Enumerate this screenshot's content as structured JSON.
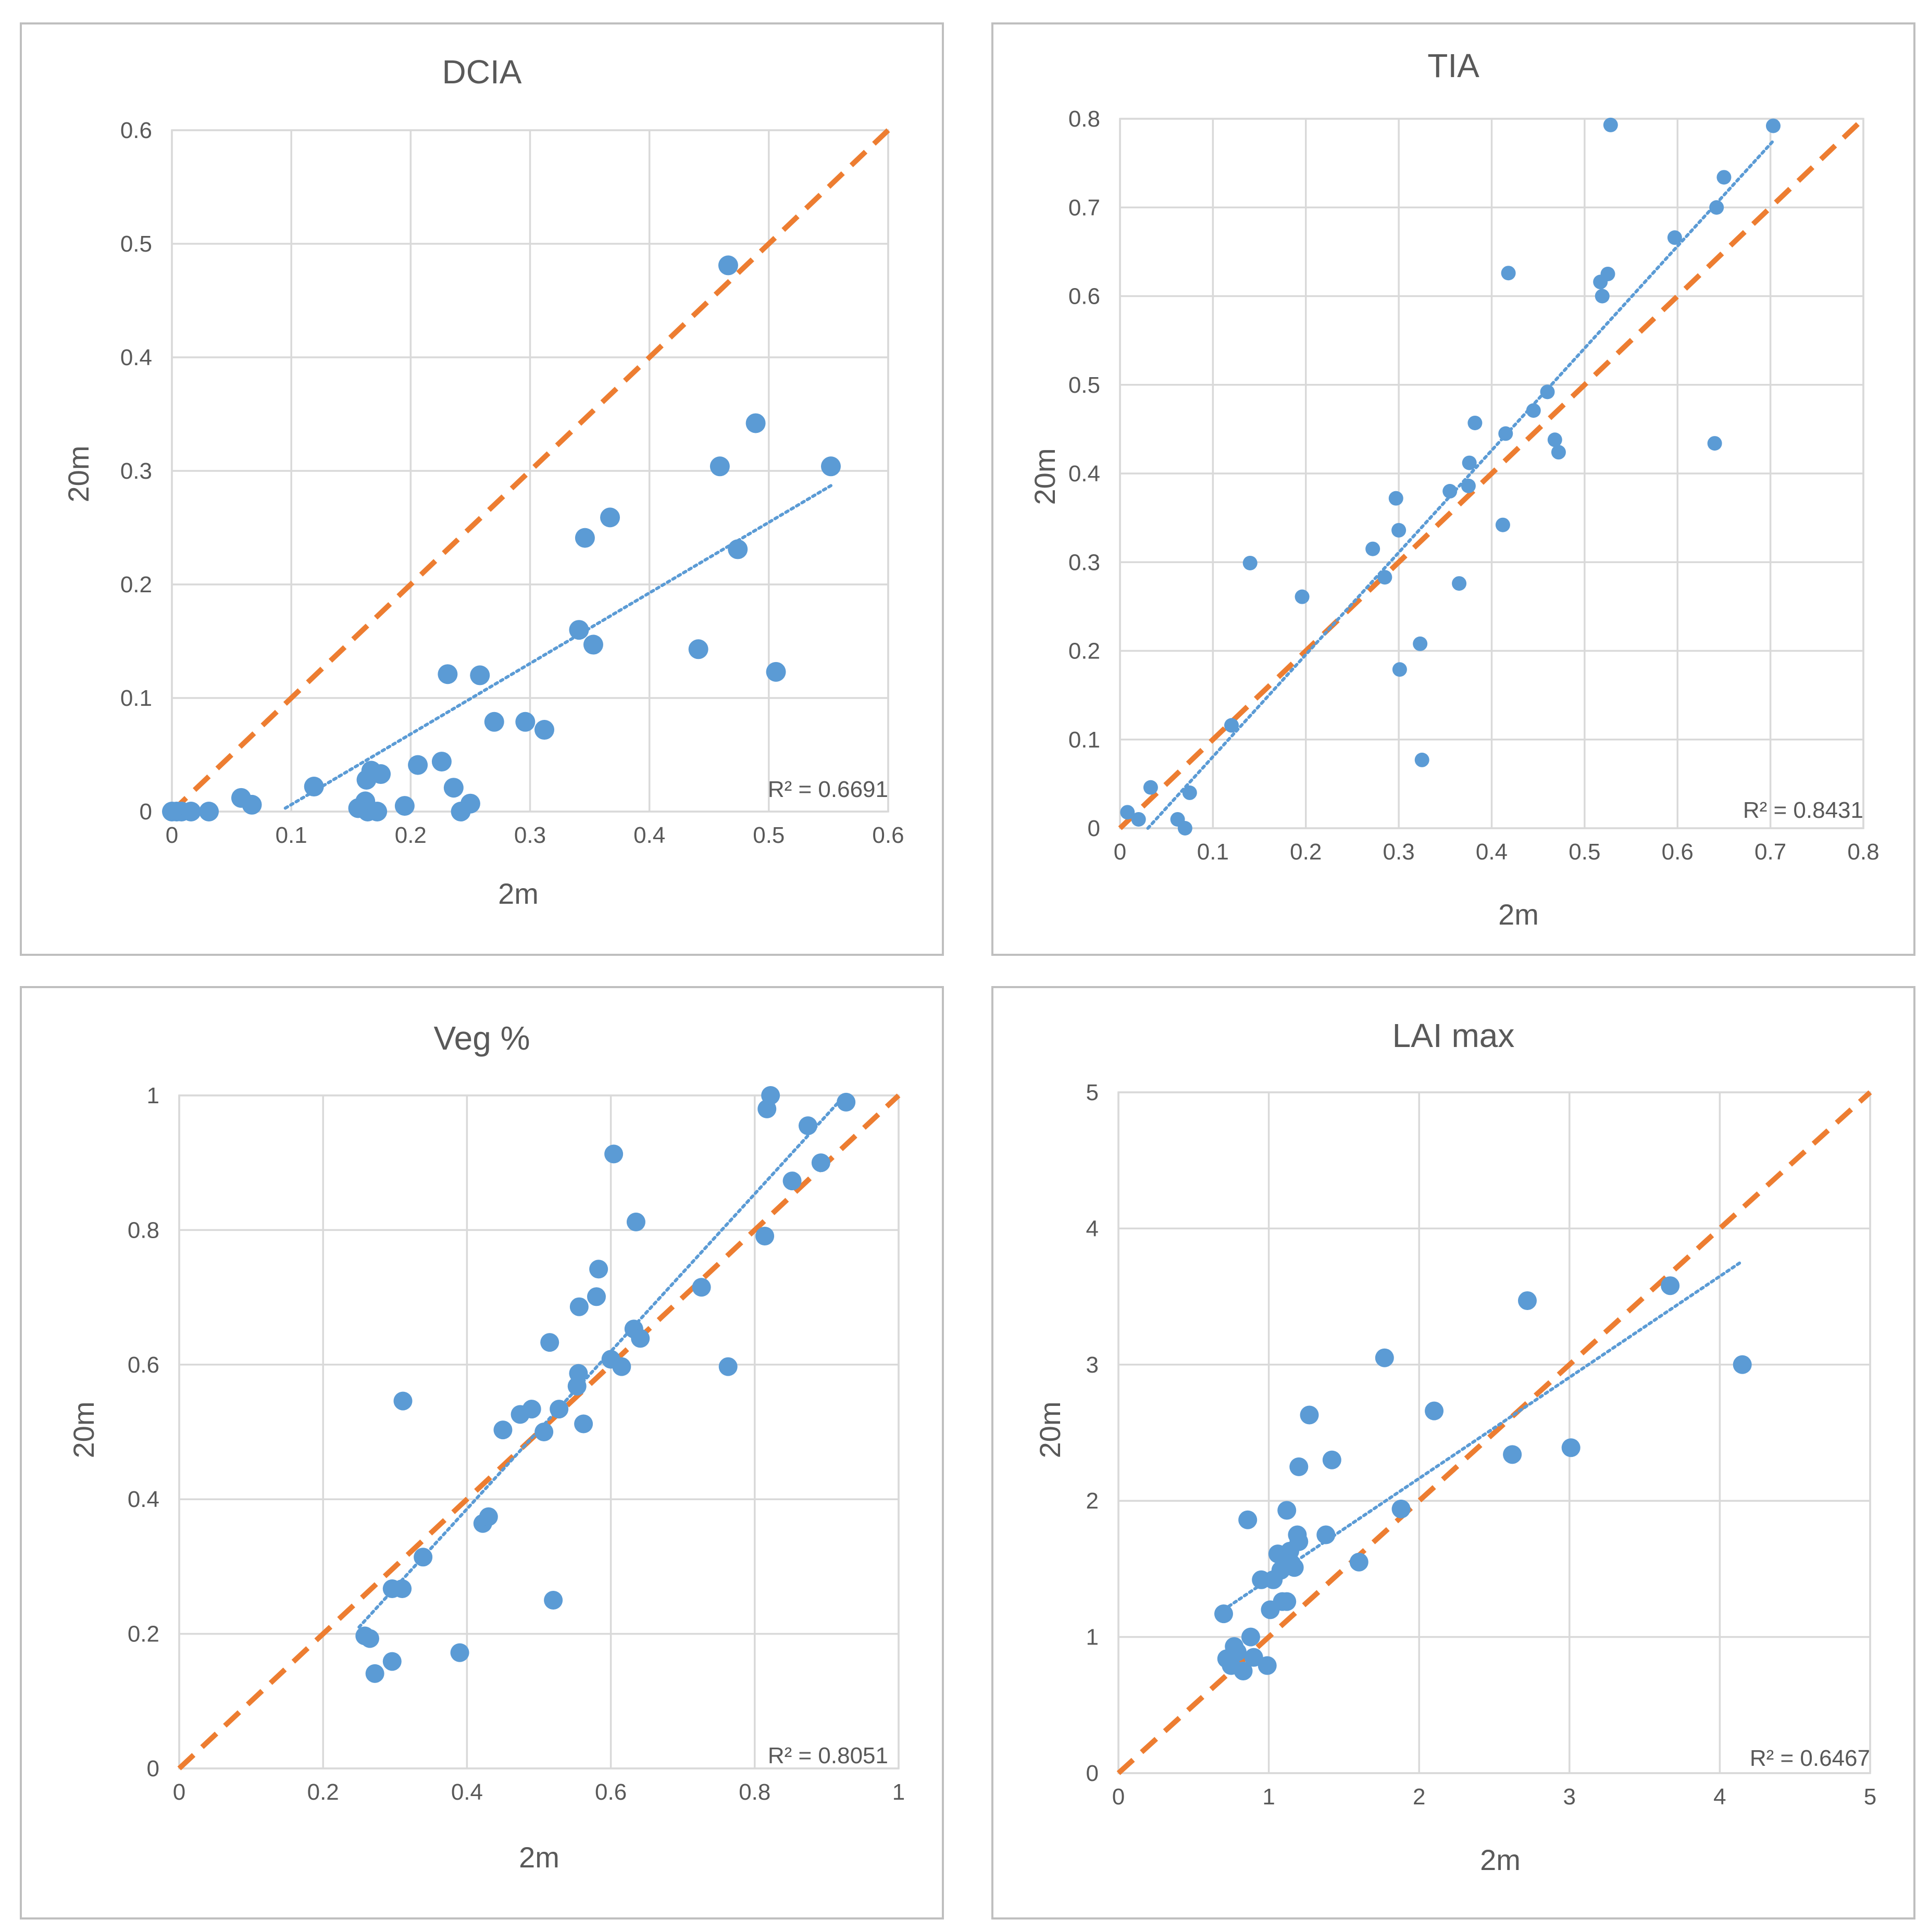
{
  "colors": {
    "points": "#5b9bd5",
    "trendline": "#5b9bd5",
    "one_to_one": "#ed7d31",
    "grid": "#d9d9d9",
    "text": "#595959"
  },
  "chart_data": [
    {
      "type": "scatter",
      "title": "DCIA",
      "xlabel": "2m",
      "ylabel": "20m",
      "xlim": [
        0,
        0.6
      ],
      "ylim": [
        0,
        0.6
      ],
      "xticks": [
        "0",
        "0.1",
        "0.2",
        "0.3",
        "0.4",
        "0.5",
        "0.6"
      ],
      "yticks": [
        "0",
        "0.1",
        "0.2",
        "0.3",
        "0.4",
        "0.5",
        "0.6"
      ],
      "r2_label": "R² = 0.6691",
      "trendline": {
        "x": [
          0.095,
          0.552
        ],
        "y": [
          0.003,
          0.287
        ]
      },
      "one_to_one": {
        "x": [
          0,
          0.6
        ],
        "y": [
          0,
          0.6
        ]
      },
      "points": [
        [
          0.0,
          0.0
        ],
        [
          0.004,
          0.0
        ],
        [
          0.008,
          0.0
        ],
        [
          0.016,
          0.0
        ],
        [
          0.031,
          0.0
        ],
        [
          0.058,
          0.012
        ],
        [
          0.067,
          0.006
        ],
        [
          0.119,
          0.022
        ],
        [
          0.156,
          0.003
        ],
        [
          0.162,
          0.009
        ],
        [
          0.163,
          0.028
        ],
        [
          0.164,
          0.0
        ],
        [
          0.167,
          0.036
        ],
        [
          0.172,
          0.0
        ],
        [
          0.175,
          0.033
        ],
        [
          0.195,
          0.005
        ],
        [
          0.206,
          0.041
        ],
        [
          0.226,
          0.044
        ],
        [
          0.231,
          0.121
        ],
        [
          0.236,
          0.021
        ],
        [
          0.242,
          0.0
        ],
        [
          0.25,
          0.007
        ],
        [
          0.258,
          0.12
        ],
        [
          0.27,
          0.079
        ],
        [
          0.296,
          0.079
        ],
        [
          0.312,
          0.072
        ],
        [
          0.341,
          0.16
        ],
        [
          0.346,
          0.241
        ],
        [
          0.353,
          0.147
        ],
        [
          0.367,
          0.259
        ],
        [
          0.441,
          0.143
        ],
        [
          0.459,
          0.304
        ],
        [
          0.466,
          0.481
        ],
        [
          0.474,
          0.231
        ],
        [
          0.489,
          0.342
        ],
        [
          0.506,
          0.123
        ],
        [
          0.552,
          0.304
        ]
      ]
    },
    {
      "type": "scatter",
      "title": "TIA",
      "xlabel": "2m",
      "ylabel": "20m",
      "xlim": [
        0,
        0.8
      ],
      "ylim": [
        0,
        0.8
      ],
      "xticks": [
        "0",
        "0.1",
        "0.2",
        "0.3",
        "0.4",
        "0.5",
        "0.6",
        "0.7",
        "0.8"
      ],
      "yticks": [
        "0",
        "0.1",
        "0.2",
        "0.3",
        "0.4",
        "0.5",
        "0.6",
        "0.7",
        "0.8"
      ],
      "r2_label": "R² = 0.8431",
      "trendline": {
        "x": [
          0.03,
          0.703
        ],
        "y": [
          0.0,
          0.775
        ]
      },
      "one_to_one": {
        "x": [
          0,
          0.8
        ],
        "y": [
          0,
          0.8
        ]
      },
      "points": [
        [
          0.008,
          0.018
        ],
        [
          0.02,
          0.01
        ],
        [
          0.033,
          0.046
        ],
        [
          0.062,
          0.01
        ],
        [
          0.07,
          0.0
        ],
        [
          0.075,
          0.04
        ],
        [
          0.12,
          0.116
        ],
        [
          0.14,
          0.299
        ],
        [
          0.196,
          0.261
        ],
        [
          0.272,
          0.315
        ],
        [
          0.285,
          0.283
        ],
        [
          0.297,
          0.372
        ],
        [
          0.3,
          0.336
        ],
        [
          0.301,
          0.179
        ],
        [
          0.323,
          0.208
        ],
        [
          0.325,
          0.077
        ],
        [
          0.355,
          0.38
        ],
        [
          0.365,
          0.276
        ],
        [
          0.375,
          0.386
        ],
        [
          0.376,
          0.412
        ],
        [
          0.382,
          0.457
        ],
        [
          0.412,
          0.342
        ],
        [
          0.415,
          0.445
        ],
        [
          0.418,
          0.626
        ],
        [
          0.445,
          0.471
        ],
        [
          0.46,
          0.492
        ],
        [
          0.468,
          0.438
        ],
        [
          0.472,
          0.424
        ],
        [
          0.517,
          0.616
        ],
        [
          0.519,
          0.6
        ],
        [
          0.525,
          0.625
        ],
        [
          0.528,
          0.793
        ],
        [
          0.597,
          0.666
        ],
        [
          0.64,
          0.434
        ],
        [
          0.642,
          0.7
        ],
        [
          0.65,
          0.734
        ],
        [
          0.703,
          0.792
        ]
      ]
    },
    {
      "type": "scatter",
      "title": "Veg %",
      "xlabel": "2m",
      "ylabel": "20m",
      "xlim": [
        0,
        1
      ],
      "ylim": [
        0,
        1
      ],
      "xticks": [
        "0",
        "0.2",
        "0.4",
        "0.6",
        "0.8",
        "1"
      ],
      "yticks": [
        "0",
        "0.2",
        "0.4",
        "0.6",
        "0.8",
        "1"
      ],
      "r2_label": "R² = 0.8051",
      "trendline": {
        "x": [
          0.25,
          0.925
        ],
        "y": [
          0.21,
          1.0
        ]
      },
      "one_to_one": {
        "x": [
          0,
          1
        ],
        "y": [
          0,
          1
        ]
      },
      "points": [
        [
          0.258,
          0.197
        ],
        [
          0.265,
          0.193
        ],
        [
          0.272,
          0.141
        ],
        [
          0.296,
          0.267
        ],
        [
          0.296,
          0.159
        ],
        [
          0.31,
          0.267
        ],
        [
          0.311,
          0.546
        ],
        [
          0.339,
          0.314
        ],
        [
          0.39,
          0.172
        ],
        [
          0.422,
          0.364
        ],
        [
          0.43,
          0.374
        ],
        [
          0.45,
          0.503
        ],
        [
          0.474,
          0.526
        ],
        [
          0.49,
          0.534
        ],
        [
          0.507,
          0.5
        ],
        [
          0.515,
          0.633
        ],
        [
          0.52,
          0.25
        ],
        [
          0.528,
          0.534
        ],
        [
          0.553,
          0.568
        ],
        [
          0.555,
          0.587
        ],
        [
          0.556,
          0.686
        ],
        [
          0.562,
          0.512
        ],
        [
          0.58,
          0.701
        ],
        [
          0.583,
          0.742
        ],
        [
          0.6,
          0.608
        ],
        [
          0.604,
          0.913
        ],
        [
          0.615,
          0.597
        ],
        [
          0.632,
          0.653
        ],
        [
          0.635,
          0.812
        ],
        [
          0.641,
          0.639
        ],
        [
          0.726,
          0.715
        ],
        [
          0.763,
          0.597
        ],
        [
          0.814,
          0.791
        ],
        [
          0.817,
          0.98
        ],
        [
          0.822,
          1.0
        ],
        [
          0.852,
          0.873
        ],
        [
          0.874,
          0.955
        ],
        [
          0.892,
          0.9
        ],
        [
          0.927,
          0.99
        ]
      ]
    },
    {
      "type": "scatter",
      "title": "LAI max",
      "xlabel": "2m",
      "ylabel": "20m",
      "xlim": [
        0,
        5
      ],
      "ylim": [
        0,
        5
      ],
      "xticks": [
        "0",
        "1",
        "2",
        "3",
        "4",
        "5"
      ],
      "yticks": [
        "0",
        "1",
        "2",
        "3",
        "4",
        "5"
      ],
      "r2_label": "R² = 0.6467",
      "trendline": {
        "x": [
          0.7,
          4.15
        ],
        "y": [
          1.2,
          3.76
        ]
      },
      "one_to_one": {
        "x": [
          0,
          5
        ],
        "y": [
          0,
          5
        ]
      },
      "points": [
        [
          0.7,
          1.17
        ],
        [
          0.72,
          0.84
        ],
        [
          0.75,
          0.79
        ],
        [
          0.77,
          0.93
        ],
        [
          0.79,
          0.89
        ],
        [
          0.83,
          0.75
        ],
        [
          0.86,
          1.86
        ],
        [
          0.88,
          1.0
        ],
        [
          0.9,
          0.85
        ],
        [
          0.95,
          1.42
        ],
        [
          0.99,
          0.79
        ],
        [
          1.01,
          1.2
        ],
        [
          1.03,
          1.42
        ],
        [
          1.06,
          1.61
        ],
        [
          1.08,
          1.49
        ],
        [
          1.09,
          1.26
        ],
        [
          1.12,
          1.93
        ],
        [
          1.12,
          1.26
        ],
        [
          1.14,
          1.63
        ],
        [
          1.15,
          1.54
        ],
        [
          1.17,
          1.51
        ],
        [
          1.19,
          1.75
        ],
        [
          1.2,
          1.7
        ],
        [
          1.2,
          2.25
        ],
        [
          1.27,
          2.63
        ],
        [
          1.38,
          1.75
        ],
        [
          1.42,
          2.3
        ],
        [
          1.6,
          1.55
        ],
        [
          1.77,
          3.05
        ],
        [
          1.88,
          1.94
        ],
        [
          2.1,
          2.66
        ],
        [
          2.62,
          2.34
        ],
        [
          2.72,
          3.47
        ],
        [
          3.01,
          2.39
        ],
        [
          3.67,
          3.58
        ],
        [
          4.15,
          3.0
        ]
      ]
    }
  ]
}
